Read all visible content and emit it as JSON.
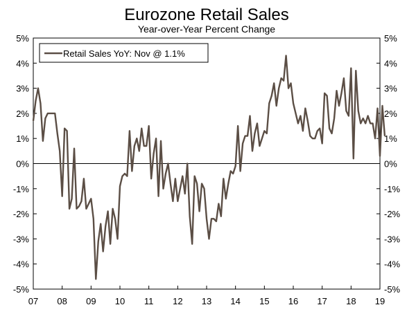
{
  "chart_data": {
    "type": "line",
    "title": "Eurozone Retail Sales",
    "subtitle": "Year-over-Year Percent Change",
    "xlabel": "",
    "ylabel": "",
    "ylim": [
      -5,
      5
    ],
    "xlim": [
      2007,
      2019
    ],
    "grid": false,
    "zero_line": true,
    "legend_position": "top-left",
    "colors": {
      "series": "#5b4e45",
      "axis": "#000000",
      "zero_line": "#000000"
    },
    "x_tick_labels": [
      "07",
      "08",
      "09",
      "10",
      "11",
      "12",
      "13",
      "14",
      "15",
      "16",
      "17",
      "18",
      "19"
    ],
    "y_tick_labels": [
      "5%",
      "4%",
      "3%",
      "2%",
      "1%",
      "0%",
      "-1%",
      "-2%",
      "-3%",
      "-4%",
      "-5%"
    ],
    "y_tick_values": [
      5,
      4,
      3,
      2,
      1,
      0,
      -1,
      -2,
      -3,
      -4,
      -5
    ],
    "series": [
      {
        "name": "Retail Sales YoY: Nov @ 1.1%",
        "start": "2007-01",
        "frequency": "monthly",
        "values": [
          1.7,
          2.5,
          3.0,
          2.4,
          0.9,
          1.8,
          2.0,
          2.0,
          2.0,
          2.0,
          1.2,
          0.5,
          -1.3,
          1.4,
          1.3,
          -1.8,
          -1.4,
          0.6,
          -1.8,
          -1.7,
          -1.5,
          -0.6,
          -1.8,
          -1.6,
          -1.4,
          -2.2,
          -4.6,
          -3.1,
          -2.4,
          -3.5,
          -2.5,
          -1.9,
          -3.2,
          -1.8,
          -2.2,
          -3.0,
          -0.9,
          -0.5,
          -0.4,
          -0.5,
          1.3,
          -0.3,
          0.7,
          1.0,
          0.5,
          1.4,
          0.7,
          0.7,
          1.5,
          -0.6,
          0.4,
          1.0,
          -1.3,
          0.9,
          -1.0,
          -0.4,
          0.0,
          -0.8,
          -1.5,
          -0.6,
          -1.5,
          -1.0,
          -0.5,
          -1.2,
          0.0,
          -2.1,
          -3.2,
          -0.5,
          -0.8,
          -1.9,
          -0.8,
          -1.0,
          -2.2,
          -3.0,
          -2.2,
          -2.2,
          -2.3,
          -1.6,
          -2.1,
          -0.6,
          -1.4,
          -0.8,
          -0.3,
          -0.4,
          -0.1,
          1.5,
          -0.3,
          0.8,
          1.1,
          1.1,
          1.9,
          0.5,
          1.2,
          1.6,
          0.7,
          1.0,
          1.3,
          1.2,
          2.4,
          2.7,
          3.2,
          2.3,
          3.0,
          3.4,
          3.3,
          4.3,
          3.0,
          3.2,
          2.4,
          2.0,
          1.6,
          1.9,
          1.3,
          2.2,
          1.7,
          1.1,
          1.0,
          1.0,
          1.3,
          1.4,
          0.8,
          2.8,
          2.7,
          1.4,
          1.2,
          1.8,
          2.9,
          2.3,
          2.8,
          3.4,
          2.1,
          1.9,
          3.8,
          0.2,
          3.7,
          2.1,
          1.6,
          1.8,
          1.6,
          1.9,
          1.6,
          1.6,
          1.0,
          2.2,
          0.3,
          2.3,
          1.1
        ]
      }
    ]
  }
}
